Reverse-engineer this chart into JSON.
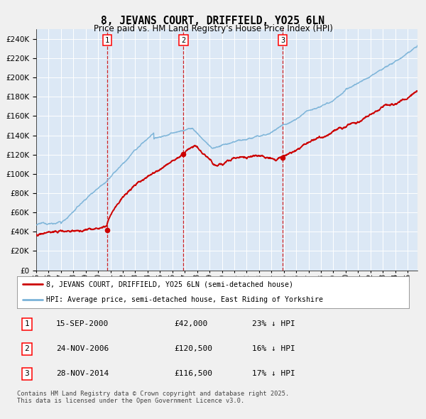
{
  "title": "8, JEVANS COURT, DRIFFIELD, YO25 6LN",
  "subtitle": "Price paid vs. HM Land Registry's House Price Index (HPI)",
  "legend_line1": "8, JEVANS COURT, DRIFFIELD, YO25 6LN (semi-detached house)",
  "legend_line2": "HPI: Average price, semi-detached house, East Riding of Yorkshire",
  "table_entries": [
    {
      "num": "1",
      "date": "15-SEP-2000",
      "price": "£42,000",
      "hpi": "23% ↓ HPI"
    },
    {
      "num": "2",
      "date": "24-NOV-2006",
      "price": "£120,500",
      "hpi": "16% ↓ HPI"
    },
    {
      "num": "3",
      "date": "28-NOV-2014",
      "price": "£116,500",
      "hpi": "17% ↓ HPI"
    }
  ],
  "footnote": "Contains HM Land Registry data © Crown copyright and database right 2025.\nThis data is licensed under the Open Government Licence v3.0.",
  "sale_dates_decimal": [
    2000.71,
    2006.9,
    2014.91
  ],
  "sale_prices": [
    42000,
    120500,
    116500
  ],
  "hpi_color": "#7ab3d8",
  "price_color": "#cc0000",
  "plot_bg": "#dce8f5",
  "grid_color": "#ffffff",
  "vline_color": "#cc0000",
  "ylim": [
    0,
    250000
  ],
  "yticks": [
    0,
    20000,
    40000,
    60000,
    80000,
    100000,
    120000,
    140000,
    160000,
    180000,
    200000,
    220000,
    240000
  ],
  "xlim_start": 1995.0,
  "xlim_end": 2025.8,
  "xtick_years": [
    1995,
    1996,
    1997,
    1998,
    1999,
    2000,
    2001,
    2002,
    2003,
    2004,
    2005,
    2006,
    2007,
    2008,
    2009,
    2010,
    2011,
    2012,
    2013,
    2014,
    2015,
    2016,
    2017,
    2018,
    2019,
    2020,
    2021,
    2022,
    2023,
    2024,
    2025
  ]
}
